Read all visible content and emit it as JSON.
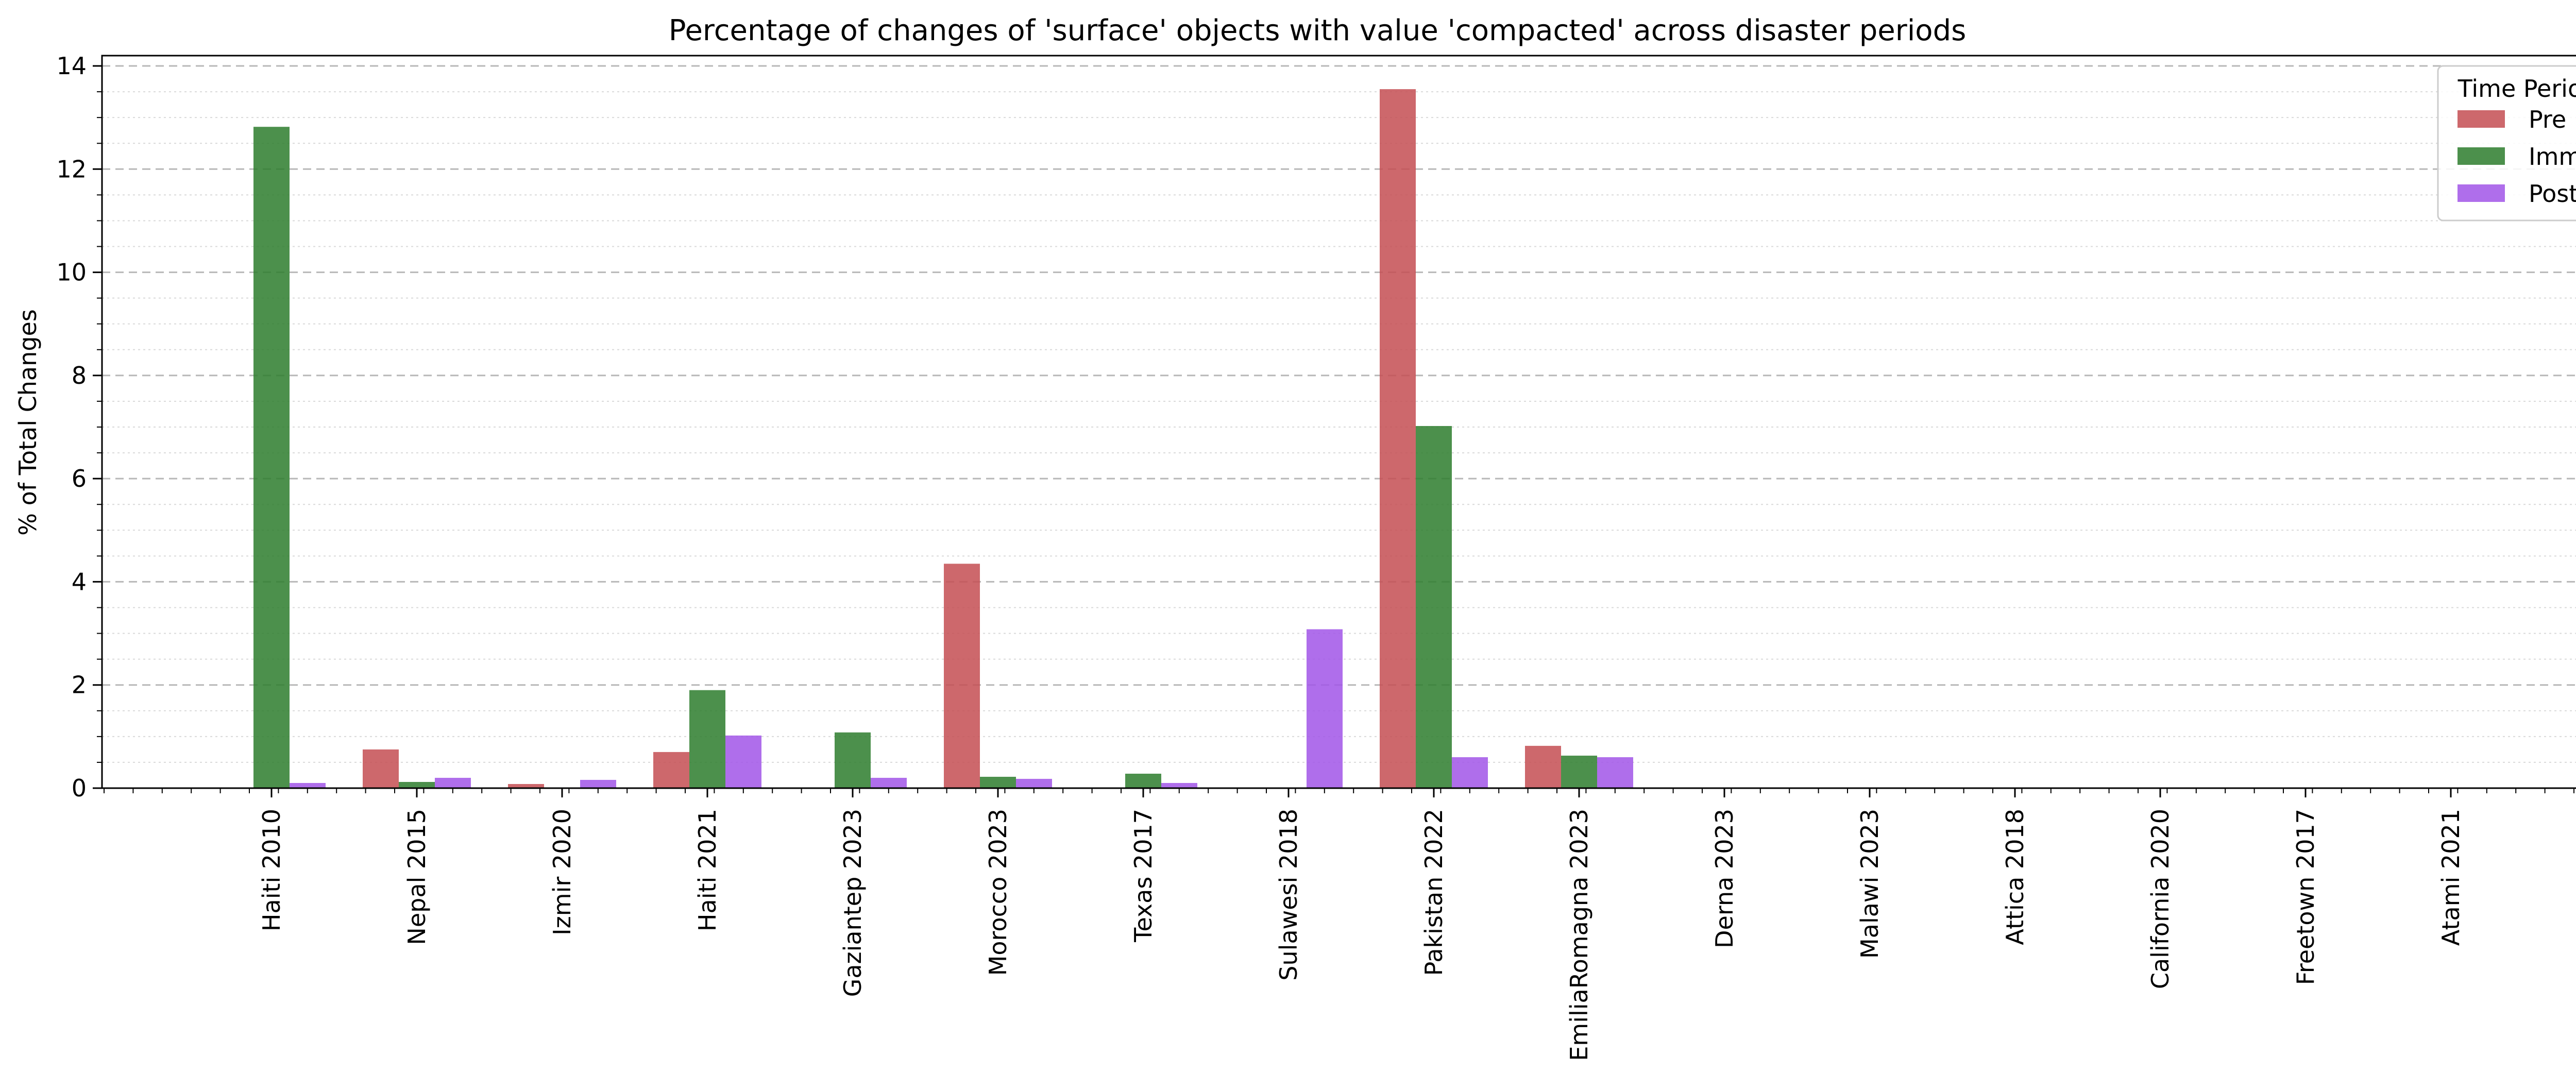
{
  "chart_data": {
    "type": "bar",
    "title": "Percentage of changes of 'surface' objects with value 'compacted' across disaster periods",
    "xlabel": "",
    "ylabel": "% of Total Changes",
    "ylim": [
      0,
      14.2
    ],
    "yticks": [
      0,
      2,
      4,
      6,
      8,
      10,
      12,
      14
    ],
    "grid": true,
    "legend": {
      "title": "Time Period",
      "placement": "top-right"
    },
    "categories": [
      "Haiti 2010",
      "Nepal 2015",
      "Izmir 2020",
      "Haiti 2021",
      "Gaziantep 2023",
      "Morocco 2023",
      "Texas 2017",
      "Sulawesi 2018",
      "Pakistan 2022",
      "EmiliaRomagna 2023",
      "Derna 2023",
      "Malawi 2023",
      "Attica 2018",
      "California 2020",
      "Freetown 2017",
      "Atami 2021"
    ],
    "series": [
      {
        "name": "Pre",
        "color": "#c44e52",
        "values": [
          0,
          0.75,
          0.08,
          0.7,
          0,
          4.35,
          0,
          0,
          13.55,
          0.82,
          0,
          0,
          0,
          0,
          0,
          0
        ]
      },
      {
        "name": "Imm",
        "color": "#2d7d2d",
        "values": [
          12.82,
          0.12,
          0,
          1.9,
          1.08,
          0.22,
          0.28,
          0,
          7.02,
          0.63,
          0,
          0,
          0,
          0,
          0,
          0
        ]
      },
      {
        "name": "Post",
        "color": "#a155e7",
        "values": [
          0.1,
          0.2,
          0.16,
          1.02,
          0.2,
          0.18,
          0.1,
          3.08,
          0.6,
          0.6,
          0,
          0,
          0,
          0,
          0,
          0
        ]
      }
    ]
  }
}
